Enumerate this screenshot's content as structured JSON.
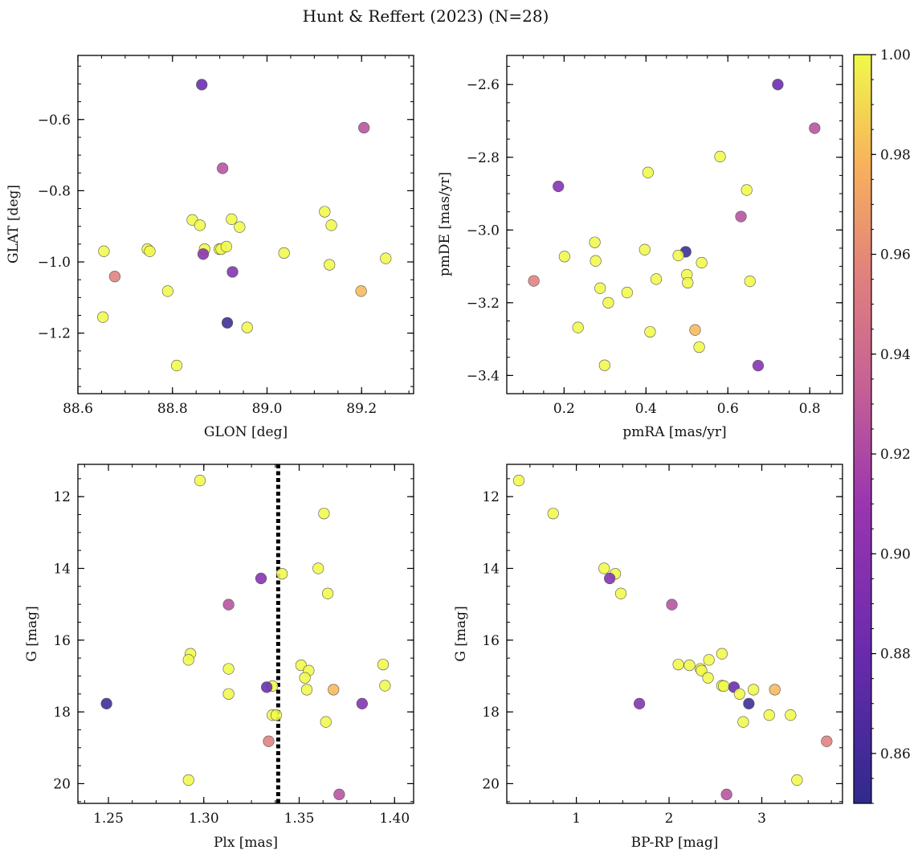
{
  "figure": {
    "title": "Hunt & Reffert (2023) (N=28)"
  },
  "colors": {
    "colormap": "plasma",
    "point_edge": "#555555",
    "ref_line": "#000000"
  },
  "chart_data": [
    {
      "type": "scatter",
      "id": "glon-glat",
      "xlabel": "GLON [deg]",
      "ylabel": "GLAT [deg]",
      "xlim": [
        88.6,
        89.31
      ],
      "ylim": [
        -1.37,
        -0.42
      ],
      "y_inverted": false,
      "xticks": [
        88.6,
        88.8,
        89.0,
        89.2
      ],
      "yticks": [
        -1.2,
        -1.0,
        -0.8,
        -0.6
      ],
      "xtick_labels": [
        "88.6",
        "88.8",
        "89.0",
        "89.2"
      ],
      "ytick_labels": [
        "−1.2",
        "−1.0",
        "−0.8",
        "−0.6"
      ],
      "points": [
        {
          "x": 88.862,
          "y": -0.502,
          "c": 0.878
        },
        {
          "x": 89.205,
          "y": -0.623,
          "c": 0.925
        },
        {
          "x": 88.906,
          "y": -0.737,
          "c": 0.925
        },
        {
          "x": 88.842,
          "y": -0.882,
          "c": 1.0
        },
        {
          "x": 88.858,
          "y": -0.897,
          "c": 1.0
        },
        {
          "x": 88.925,
          "y": -0.88,
          "c": 1.0
        },
        {
          "x": 88.942,
          "y": -0.902,
          "c": 1.0
        },
        {
          "x": 89.122,
          "y": -0.859,
          "c": 1.0
        },
        {
          "x": 89.136,
          "y": -0.897,
          "c": 1.0
        },
        {
          "x": 88.655,
          "y": -0.97,
          "c": 1.0
        },
        {
          "x": 88.747,
          "y": -0.964,
          "c": 1.0
        },
        {
          "x": 88.752,
          "y": -0.97,
          "c": 1.0
        },
        {
          "x": 88.868,
          "y": -0.964,
          "c": 1.0
        },
        {
          "x": 88.899,
          "y": -0.964,
          "c": 1.0
        },
        {
          "x": 88.903,
          "y": -0.964,
          "c": 1.0
        },
        {
          "x": 88.914,
          "y": -0.957,
          "c": 1.0
        },
        {
          "x": 89.036,
          "y": -0.975,
          "c": 1.0
        },
        {
          "x": 88.865,
          "y": -0.978,
          "c": 0.9
        },
        {
          "x": 89.132,
          "y": -1.008,
          "c": 1.0
        },
        {
          "x": 89.251,
          "y": -0.99,
          "c": 1.0
        },
        {
          "x": 88.927,
          "y": -1.028,
          "c": 0.895
        },
        {
          "x": 88.678,
          "y": -1.041,
          "c": 0.955
        },
        {
          "x": 88.79,
          "y": -1.082,
          "c": 1.0
        },
        {
          "x": 89.199,
          "y": -1.082,
          "c": 0.98
        },
        {
          "x": 88.653,
          "y": -1.155,
          "c": 1.0
        },
        {
          "x": 88.916,
          "y": -1.171,
          "c": 0.855
        },
        {
          "x": 88.958,
          "y": -1.184,
          "c": 1.0
        },
        {
          "x": 88.809,
          "y": -1.291,
          "c": 1.0
        }
      ]
    },
    {
      "type": "scatter",
      "id": "pmra-pmde",
      "xlabel": "pmRA [mas/yr]",
      "ylabel": "pmDE [mas/yr]",
      "xlim": [
        0.06,
        0.88
      ],
      "ylim": [
        -3.45,
        -2.52
      ],
      "y_inverted": false,
      "xticks": [
        0.2,
        0.4,
        0.6,
        0.8
      ],
      "yticks": [
        -3.4,
        -3.2,
        -3.0,
        -2.8,
        -2.6
      ],
      "xtick_labels": [
        "0.2",
        "0.4",
        "0.6",
        "0.8"
      ],
      "ytick_labels": [
        "−3.4",
        "−3.2",
        "−3.0",
        "−2.8",
        "−2.6"
      ],
      "points": [
        {
          "x": 0.722,
          "y": -2.6,
          "c": 0.878
        },
        {
          "x": 0.812,
          "y": -2.72,
          "c": 0.925
        },
        {
          "x": 0.581,
          "y": -2.798,
          "c": 1.0
        },
        {
          "x": 0.405,
          "y": -2.842,
          "c": 1.0
        },
        {
          "x": 0.186,
          "y": -2.88,
          "c": 0.895
        },
        {
          "x": 0.646,
          "y": -2.89,
          "c": 1.0
        },
        {
          "x": 0.632,
          "y": -2.963,
          "c": 0.925
        },
        {
          "x": 0.275,
          "y": -3.034,
          "c": 1.0
        },
        {
          "x": 0.397,
          "y": -3.054,
          "c": 1.0
        },
        {
          "x": 0.497,
          "y": -3.06,
          "c": 0.855
        },
        {
          "x": 0.479,
          "y": -3.07,
          "c": 1.0
        },
        {
          "x": 0.201,
          "y": -3.073,
          "c": 1.0
        },
        {
          "x": 0.277,
          "y": -3.085,
          "c": 1.0
        },
        {
          "x": 0.536,
          "y": -3.09,
          "c": 1.0
        },
        {
          "x": 0.5,
          "y": -3.123,
          "c": 1.0
        },
        {
          "x": 0.425,
          "y": -3.135,
          "c": 1.0
        },
        {
          "x": 0.126,
          "y": -3.14,
          "c": 0.955
        },
        {
          "x": 0.654,
          "y": -3.141,
          "c": 1.0
        },
        {
          "x": 0.502,
          "y": -3.145,
          "c": 1.0
        },
        {
          "x": 0.288,
          "y": -3.16,
          "c": 1.0
        },
        {
          "x": 0.354,
          "y": -3.172,
          "c": 1.0
        },
        {
          "x": 0.308,
          "y": -3.2,
          "c": 1.0
        },
        {
          "x": 0.234,
          "y": -3.268,
          "c": 1.0
        },
        {
          "x": 0.52,
          "y": -3.275,
          "c": 0.98
        },
        {
          "x": 0.41,
          "y": -3.28,
          "c": 1.0
        },
        {
          "x": 0.53,
          "y": -3.322,
          "c": 1.0
        },
        {
          "x": 0.299,
          "y": -3.372,
          "c": 1.0
        },
        {
          "x": 0.674,
          "y": -3.373,
          "c": 0.895
        }
      ]
    },
    {
      "type": "scatter",
      "id": "plx-g",
      "xlabel": "Plx [mas]",
      "ylabel": "G [mag]",
      "xlim": [
        1.234,
        1.41
      ],
      "ylim": [
        11.1,
        20.55
      ],
      "y_inverted": true,
      "xticks": [
        1.25,
        1.3,
        1.35,
        1.4
      ],
      "yticks": [
        12,
        14,
        16,
        18,
        20
      ],
      "xtick_labels": [
        "1.25",
        "1.30",
        "1.35",
        "1.40"
      ],
      "ytick_labels": [
        "12",
        "14",
        "16",
        "18",
        "20"
      ],
      "vline": 1.339,
      "points": [
        {
          "x": 1.298,
          "y": 11.55,
          "c": 1.0
        },
        {
          "x": 1.363,
          "y": 12.47,
          "c": 1.0
        },
        {
          "x": 1.36,
          "y": 14.0,
          "c": 1.0
        },
        {
          "x": 1.341,
          "y": 14.15,
          "c": 1.0
        },
        {
          "x": 1.33,
          "y": 14.28,
          "c": 0.895
        },
        {
          "x": 1.365,
          "y": 14.7,
          "c": 1.0
        },
        {
          "x": 1.313,
          "y": 15.01,
          "c": 0.925
        },
        {
          "x": 1.293,
          "y": 16.38,
          "c": 1.0
        },
        {
          "x": 1.292,
          "y": 16.55,
          "c": 1.0
        },
        {
          "x": 1.394,
          "y": 16.68,
          "c": 1.0
        },
        {
          "x": 1.351,
          "y": 16.7,
          "c": 1.0
        },
        {
          "x": 1.313,
          "y": 16.8,
          "c": 1.0
        },
        {
          "x": 1.355,
          "y": 16.85,
          "c": 1.0
        },
        {
          "x": 1.353,
          "y": 17.05,
          "c": 1.0
        },
        {
          "x": 1.395,
          "y": 17.27,
          "c": 1.0
        },
        {
          "x": 1.336,
          "y": 17.28,
          "c": 1.0
        },
        {
          "x": 1.333,
          "y": 17.31,
          "c": 0.878
        },
        {
          "x": 1.368,
          "y": 17.38,
          "c": 0.98
        },
        {
          "x": 1.354,
          "y": 17.38,
          "c": 1.0
        },
        {
          "x": 1.313,
          "y": 17.5,
          "c": 1.0
        },
        {
          "x": 1.249,
          "y": 17.77,
          "c": 0.855
        },
        {
          "x": 1.383,
          "y": 17.77,
          "c": 0.895
        },
        {
          "x": 1.336,
          "y": 18.09,
          "c": 1.0
        },
        {
          "x": 1.338,
          "y": 18.09,
          "c": 1.0
        },
        {
          "x": 1.364,
          "y": 18.28,
          "c": 1.0
        },
        {
          "x": 1.334,
          "y": 18.82,
          "c": 0.955
        },
        {
          "x": 1.292,
          "y": 19.9,
          "c": 1.0
        },
        {
          "x": 1.371,
          "y": 20.3,
          "c": 0.925
        }
      ]
    },
    {
      "type": "scatter",
      "id": "bprp-g",
      "xlabel": "BP-RP [mag]",
      "ylabel": "G [mag]",
      "xlim": [
        0.25,
        3.87
      ],
      "ylim": [
        11.1,
        20.55
      ],
      "y_inverted": true,
      "xticks": [
        1,
        2,
        3
      ],
      "yticks": [
        12,
        14,
        16,
        18,
        20
      ],
      "xtick_labels": [
        "1",
        "2",
        "3"
      ],
      "ytick_labels": [
        "12",
        "14",
        "16",
        "18",
        "20"
      ],
      "points": [
        {
          "x": 0.38,
          "y": 11.55,
          "c": 1.0
        },
        {
          "x": 0.75,
          "y": 12.47,
          "c": 1.0
        },
        {
          "x": 1.3,
          "y": 14.0,
          "c": 1.0
        },
        {
          "x": 1.42,
          "y": 14.15,
          "c": 1.0
        },
        {
          "x": 1.36,
          "y": 14.28,
          "c": 0.895
        },
        {
          "x": 1.48,
          "y": 14.7,
          "c": 1.0
        },
        {
          "x": 2.03,
          "y": 15.01,
          "c": 0.925
        },
        {
          "x": 2.57,
          "y": 16.38,
          "c": 1.0
        },
        {
          "x": 2.43,
          "y": 16.55,
          "c": 1.0
        },
        {
          "x": 2.1,
          "y": 16.68,
          "c": 1.0
        },
        {
          "x": 2.22,
          "y": 16.7,
          "c": 1.0
        },
        {
          "x": 2.34,
          "y": 16.8,
          "c": 1.0
        },
        {
          "x": 2.35,
          "y": 16.85,
          "c": 1.0
        },
        {
          "x": 2.42,
          "y": 17.05,
          "c": 1.0
        },
        {
          "x": 2.57,
          "y": 17.27,
          "c": 1.0
        },
        {
          "x": 2.59,
          "y": 17.28,
          "c": 1.0
        },
        {
          "x": 2.7,
          "y": 17.31,
          "c": 0.878
        },
        {
          "x": 2.91,
          "y": 17.38,
          "c": 1.0
        },
        {
          "x": 3.14,
          "y": 17.38,
          "c": 0.98
        },
        {
          "x": 2.76,
          "y": 17.5,
          "c": 1.0
        },
        {
          "x": 1.68,
          "y": 17.77,
          "c": 0.895
        },
        {
          "x": 2.86,
          "y": 17.77,
          "c": 0.855
        },
        {
          "x": 3.08,
          "y": 18.09,
          "c": 1.0
        },
        {
          "x": 3.31,
          "y": 18.09,
          "c": 1.0
        },
        {
          "x": 2.8,
          "y": 18.28,
          "c": 1.0
        },
        {
          "x": 3.7,
          "y": 18.82,
          "c": 0.955
        },
        {
          "x": 3.38,
          "y": 19.9,
          "c": 1.0
        },
        {
          "x": 2.62,
          "y": 20.3,
          "c": 0.925
        }
      ]
    }
  ],
  "colorbar": {
    "min": 0.85,
    "max": 1.0,
    "ticks": [
      0.86,
      0.88,
      0.9,
      0.92,
      0.94,
      0.96,
      0.98,
      1.0
    ],
    "tick_labels": [
      "0.86",
      "0.88",
      "0.90",
      "0.92",
      "0.94",
      "0.96",
      "0.98",
      "1.00"
    ]
  }
}
